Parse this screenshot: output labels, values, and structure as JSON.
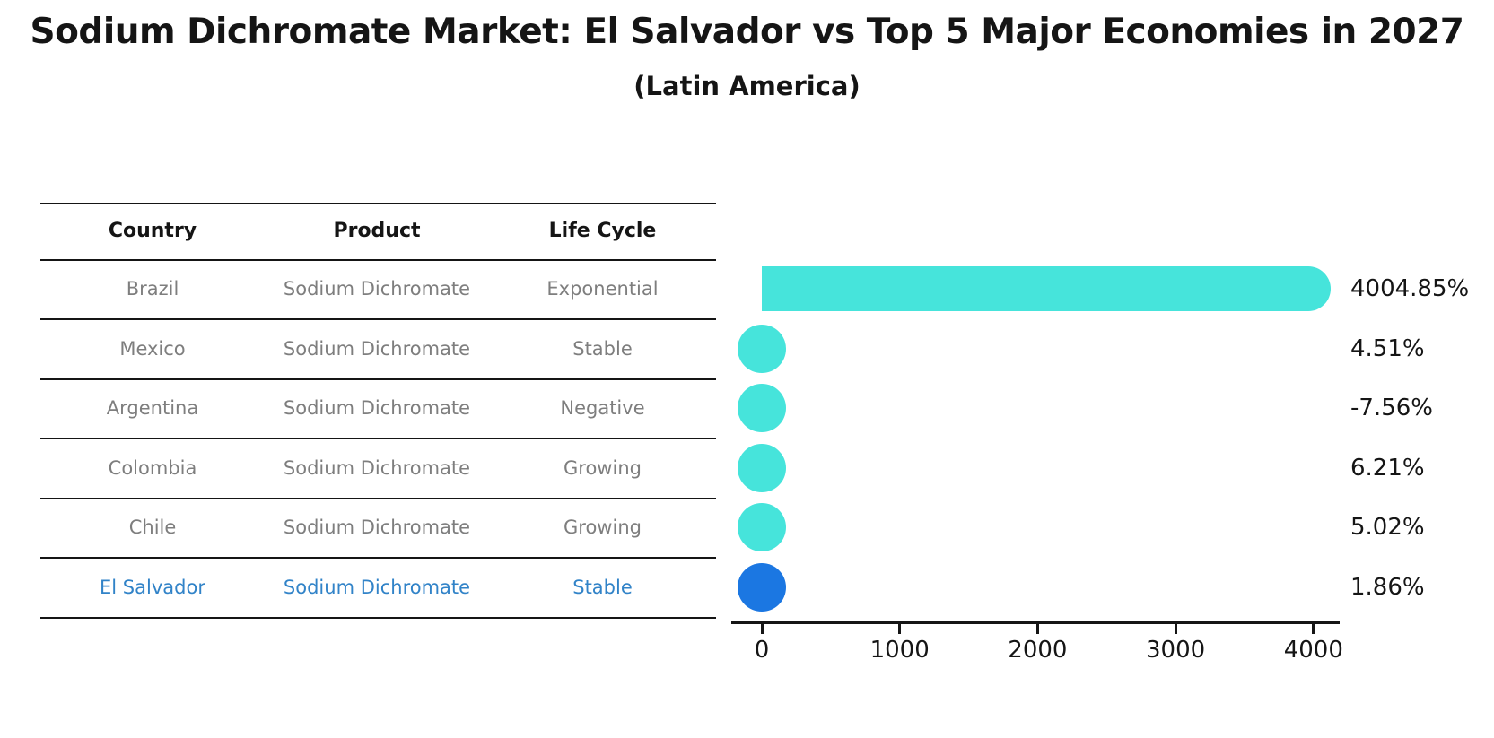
{
  "header": {
    "title": "Sodium Dichromate Market: El Salvador vs Top 5 Major Economies in 2027",
    "subtitle": "(Latin America)"
  },
  "table": {
    "columns": [
      "Country",
      "Product",
      "Life Cycle"
    ],
    "rows": [
      {
        "country": "Brazil",
        "product": "Sodium Dichromate",
        "life_cycle": "Exponential"
      },
      {
        "country": "Mexico",
        "product": "Sodium Dichromate",
        "life_cycle": "Stable"
      },
      {
        "country": "Argentina",
        "product": "Sodium Dichromate",
        "life_cycle": "Negative"
      },
      {
        "country": "Colombia",
        "product": "Sodium Dichromate",
        "life_cycle": "Growing"
      },
      {
        "country": "Chile",
        "product": "Sodium Dichromate",
        "life_cycle": "Growing"
      },
      {
        "country": "El Salvador",
        "product": "Sodium Dichromate",
        "life_cycle": "Stable"
      }
    ]
  },
  "chart_data": {
    "type": "bar",
    "orientation": "horizontal",
    "categories": [
      "Brazil",
      "Mexico",
      "Argentina",
      "Colombia",
      "Chile",
      "El Salvador"
    ],
    "values": [
      4004.85,
      4.51,
      -7.56,
      6.21,
      5.02,
      1.86
    ],
    "value_labels": [
      "4004.85%",
      "4.51%",
      "-7.56%",
      "6.21%",
      "5.02%",
      "1.86%"
    ],
    "x_ticks": [
      0,
      1000,
      2000,
      3000,
      4000
    ],
    "xlim": [
      -220,
      4200
    ],
    "grid": false,
    "legend": "none",
    "highlight_category": "El Salvador"
  },
  "colors": {
    "bar": "#46e4db",
    "highlight_bar": "#1b77e2",
    "highlight_text": "#3183c8",
    "row_text": "#7e7e7e",
    "ink": "#151515"
  }
}
